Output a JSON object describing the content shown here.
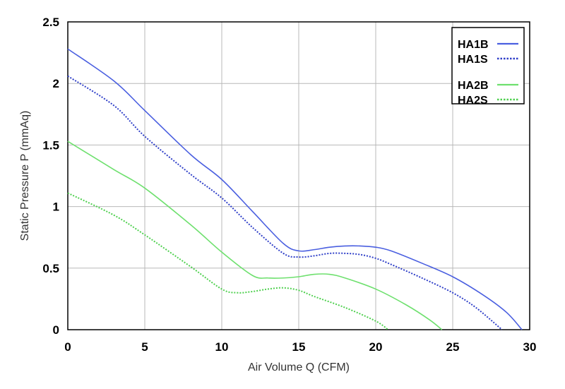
{
  "chart_data": {
    "type": "line",
    "title": "",
    "xlabel": "Air Volume Q (CFM)",
    "ylabel": "Static Pressure P (mmAq)",
    "xlim": [
      0,
      30
    ],
    "ylim": [
      0,
      2.5
    ],
    "xticks": [
      0,
      5,
      10,
      15,
      20,
      25,
      30
    ],
    "yticks": [
      0,
      0.5,
      1,
      1.5,
      2,
      2.5
    ],
    "xtick_labels": [
      "0",
      "5",
      "10",
      "15",
      "20",
      "25",
      "30"
    ],
    "ytick_labels": [
      "0",
      "0.5",
      "1",
      "1.5",
      "2",
      "2.5"
    ],
    "grid": true,
    "legend_position": "top-right",
    "series": [
      {
        "name": "HA1B",
        "color": "#4a5fe0",
        "style": "solid",
        "points": [
          [
            0,
            2.28
          ],
          [
            3,
            2.02
          ],
          [
            5,
            1.78
          ],
          [
            8,
            1.42
          ],
          [
            10,
            1.22
          ],
          [
            12,
            0.96
          ],
          [
            14,
            0.7
          ],
          [
            15,
            0.64
          ],
          [
            16,
            0.65
          ],
          [
            17,
            0.67
          ],
          [
            18,
            0.68
          ],
          [
            19,
            0.68
          ],
          [
            20,
            0.67
          ],
          [
            21,
            0.64
          ],
          [
            23,
            0.54
          ],
          [
            25,
            0.43
          ],
          [
            27,
            0.28
          ],
          [
            28.5,
            0.14
          ],
          [
            29.5,
            0
          ]
        ]
      },
      {
        "name": "HA1S",
        "color": "#2f3fc8",
        "style": "dotted",
        "points": [
          [
            0,
            2.06
          ],
          [
            3,
            1.82
          ],
          [
            5,
            1.57
          ],
          [
            8,
            1.26
          ],
          [
            10,
            1.07
          ],
          [
            12,
            0.83
          ],
          [
            14,
            0.62
          ],
          [
            15,
            0.59
          ],
          [
            16,
            0.6
          ],
          [
            17,
            0.62
          ],
          [
            18,
            0.62
          ],
          [
            19,
            0.61
          ],
          [
            20,
            0.58
          ],
          [
            21,
            0.53
          ],
          [
            23,
            0.42
          ],
          [
            25,
            0.3
          ],
          [
            26.5,
            0.18
          ],
          [
            28.2,
            0
          ]
        ]
      },
      {
        "name": "HA2B",
        "color": "#6ee06e",
        "style": "solid",
        "points": [
          [
            0,
            1.53
          ],
          [
            3,
            1.3
          ],
          [
            5,
            1.15
          ],
          [
            8,
            0.85
          ],
          [
            10,
            0.63
          ],
          [
            12,
            0.44
          ],
          [
            13,
            0.42
          ],
          [
            14,
            0.42
          ],
          [
            15,
            0.43
          ],
          [
            16,
            0.45
          ],
          [
            17,
            0.45
          ],
          [
            18,
            0.42
          ],
          [
            20,
            0.33
          ],
          [
            22,
            0.2
          ],
          [
            23.5,
            0.08
          ],
          [
            24.3,
            0
          ]
        ]
      },
      {
        "name": "HA2S",
        "color": "#4fd04f",
        "style": "dotted",
        "points": [
          [
            0,
            1.11
          ],
          [
            3,
            0.93
          ],
          [
            5,
            0.77
          ],
          [
            8,
            0.51
          ],
          [
            10,
            0.33
          ],
          [
            11,
            0.3
          ],
          [
            12,
            0.31
          ],
          [
            13,
            0.33
          ],
          [
            14,
            0.34
          ],
          [
            15,
            0.32
          ],
          [
            16,
            0.27
          ],
          [
            18,
            0.18
          ],
          [
            20,
            0.07
          ],
          [
            20.8,
            0
          ]
        ]
      }
    ]
  }
}
